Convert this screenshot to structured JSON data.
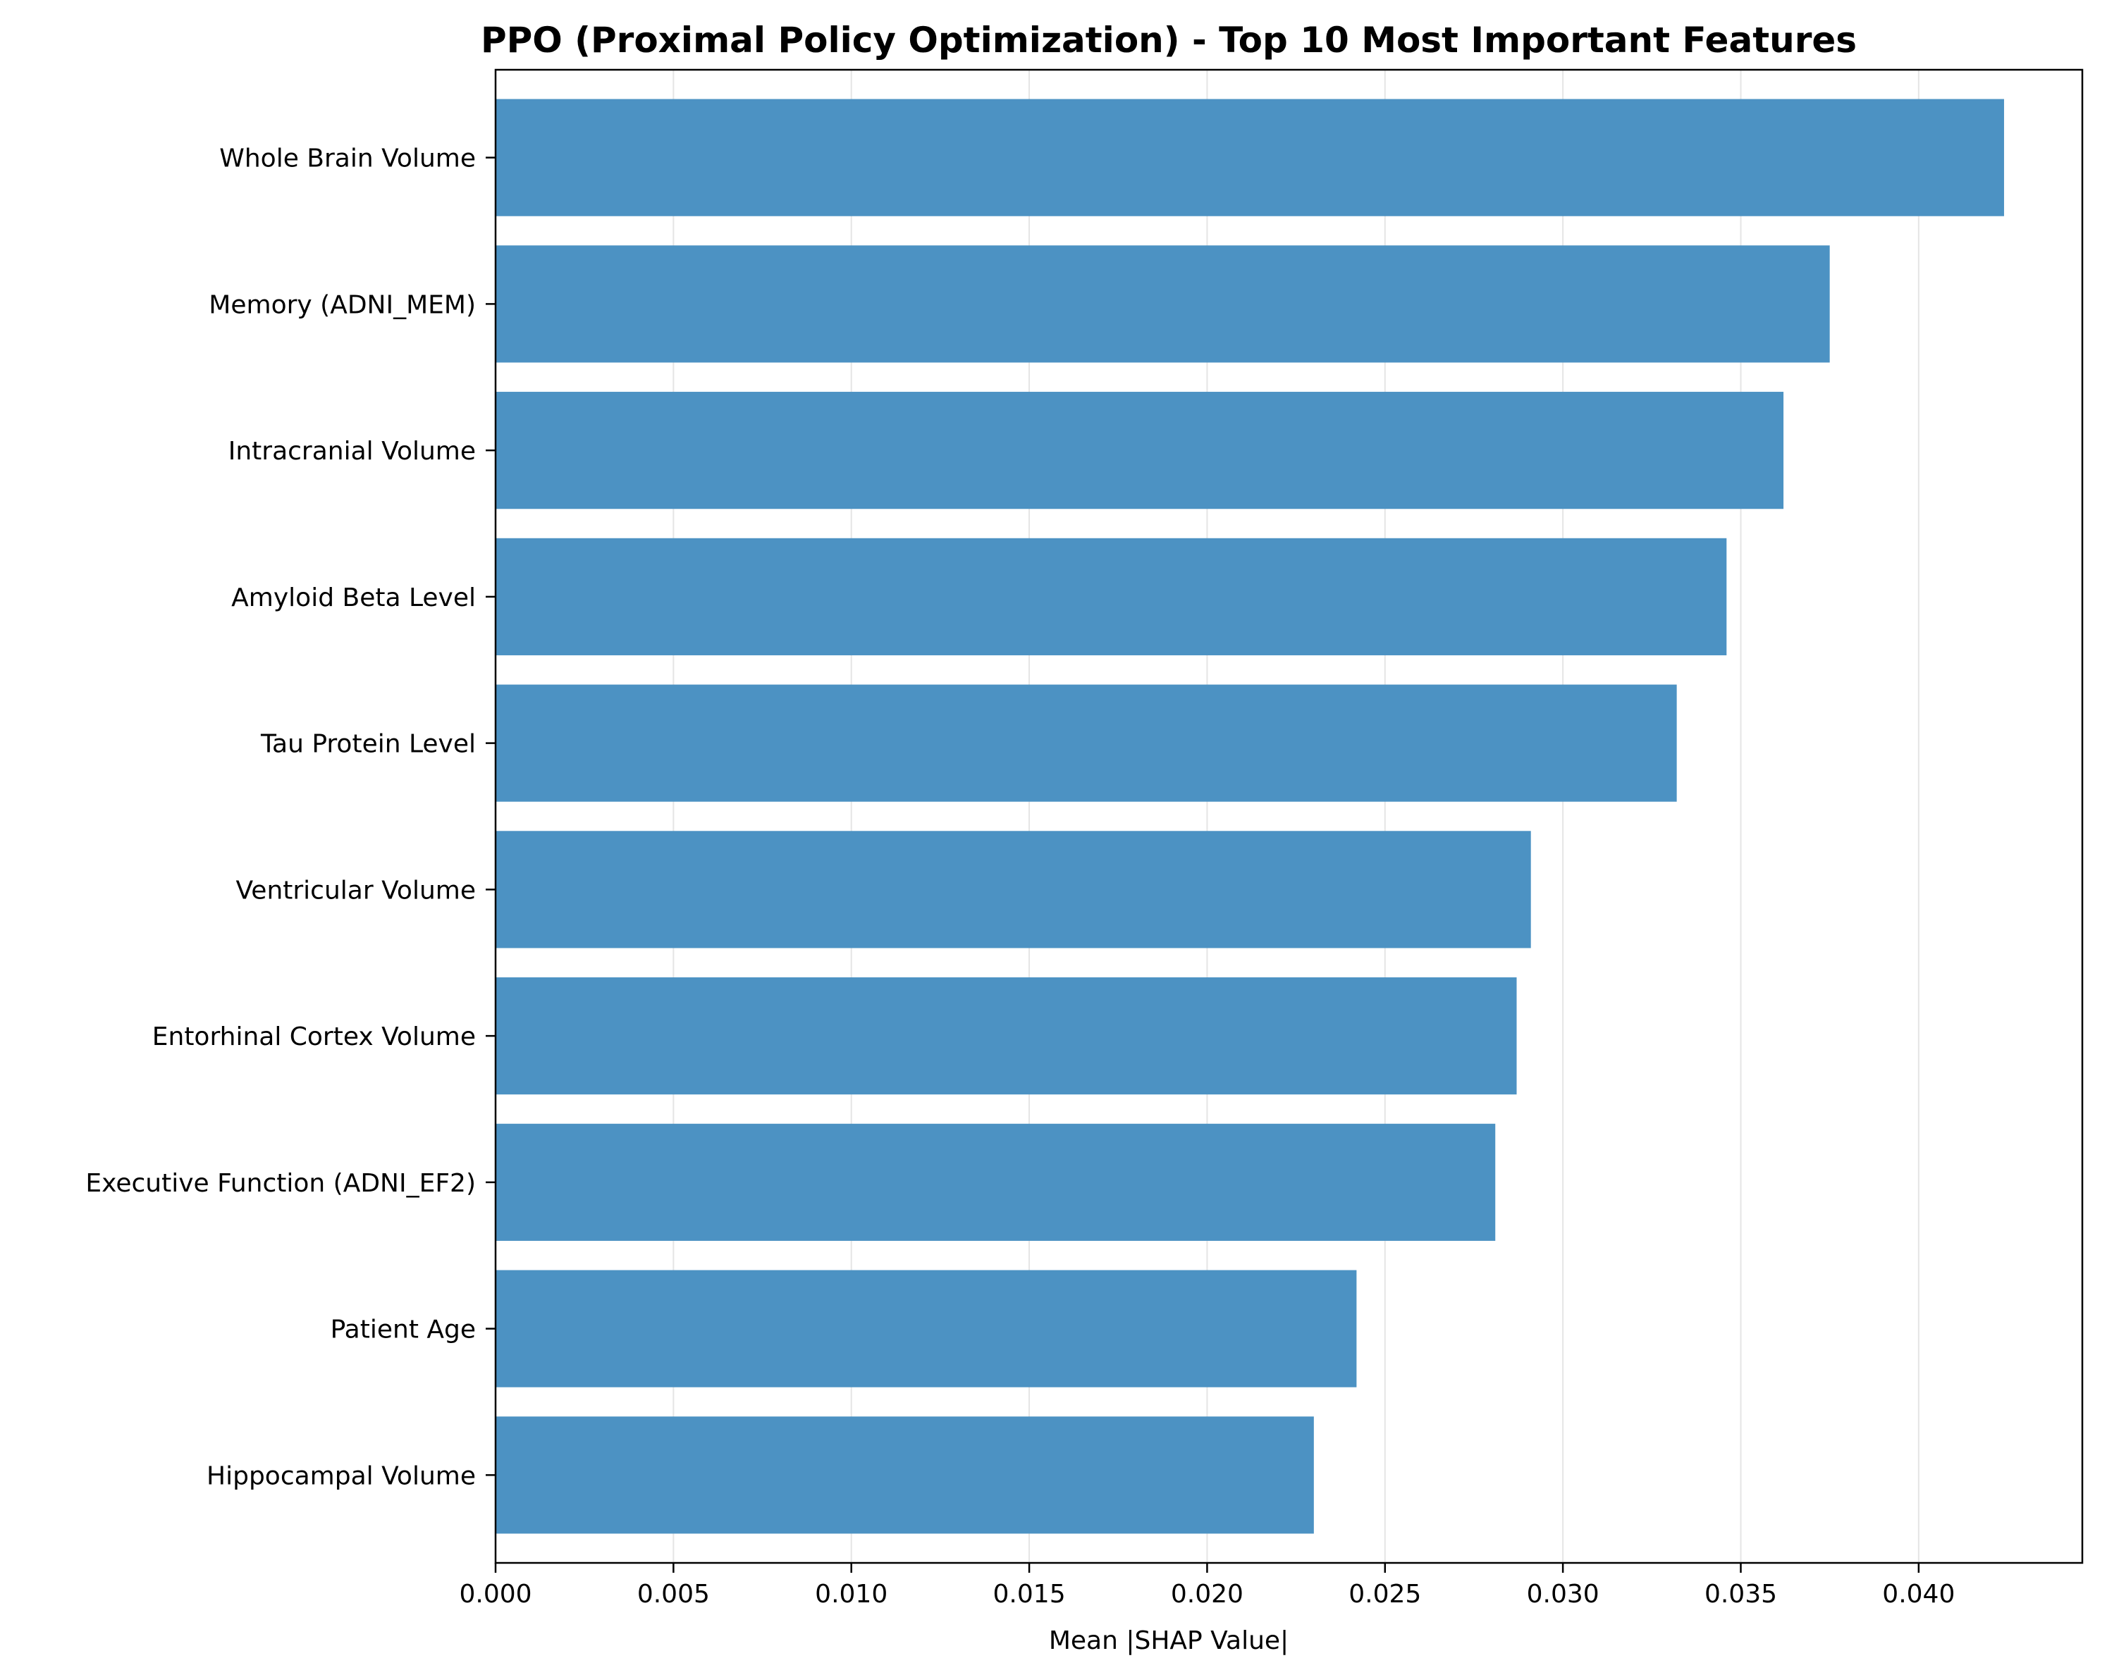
{
  "chart_data": {
    "type": "bar",
    "orientation": "horizontal",
    "title": "PPO (Proximal Policy Optimization) - Top 10 Most Important Features",
    "xlabel": "Mean |SHAP Value|",
    "ylabel": "",
    "categories": [
      "Whole Brain Volume",
      "Memory (ADNI_MEM)",
      "Intracranial Volume",
      "Amyloid Beta Level",
      "Tau Protein Level",
      "Ventricular Volume",
      "Entorhinal Cortex Volume",
      "Executive Function (ADNI_EF2)",
      "Patient Age",
      "Hippocampal Volume"
    ],
    "values": [
      0.0424,
      0.0375,
      0.0362,
      0.0346,
      0.0332,
      0.0291,
      0.0287,
      0.0281,
      0.0242,
      0.023
    ],
    "xlim": [
      0,
      0.0446
    ],
    "xticks": [
      0.0,
      0.005,
      0.01,
      0.015,
      0.02,
      0.025,
      0.03,
      0.035,
      0.04
    ],
    "xtick_labels": [
      "0.000",
      "0.005",
      "0.010",
      "0.015",
      "0.020",
      "0.025",
      "0.030",
      "0.035",
      "0.040"
    ],
    "grid": "x",
    "bar_color": "#4c92c3",
    "grid_color": "#e5e5e5"
  }
}
